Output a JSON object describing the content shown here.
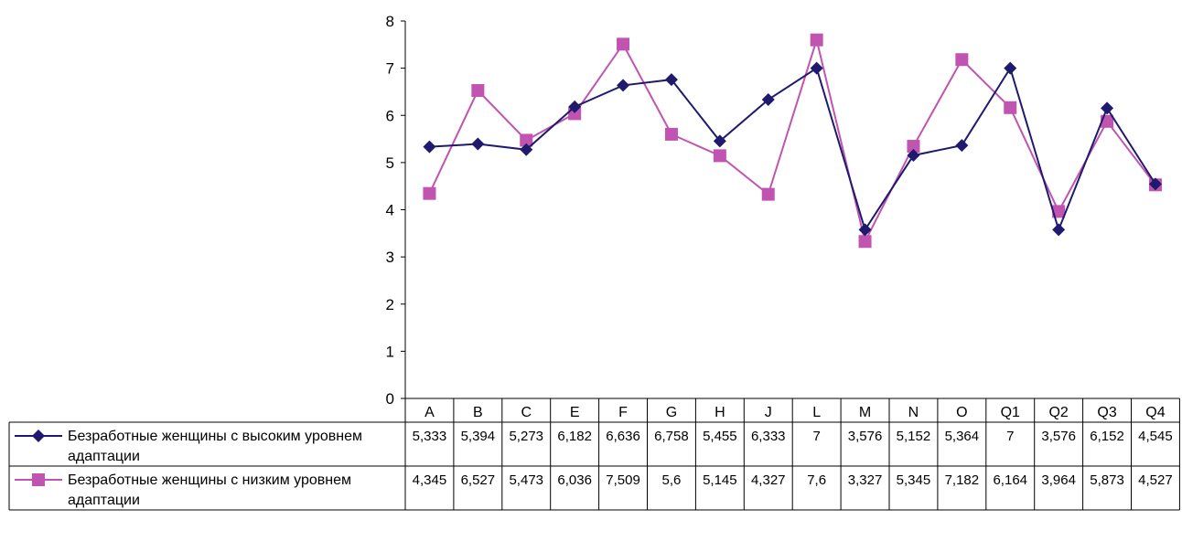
{
  "chart_data": {
    "type": "line",
    "categories": [
      "A",
      "B",
      "C",
      "E",
      "F",
      "G",
      "H",
      "J",
      "L",
      "M",
      "N",
      "O",
      "Q1",
      "Q2",
      "Q3",
      "Q4"
    ],
    "ylim": [
      0,
      8
    ],
    "yticks": [
      0,
      1,
      2,
      3,
      4,
      5,
      6,
      7,
      8
    ],
    "grid": false,
    "legend": "data-table",
    "series": [
      {
        "name_lines": [
          "Безработные женщины с высоким уровнем",
          "адаптации"
        ],
        "marker": "diamond",
        "color": "#1f1a6e",
        "values": [
          5.333,
          5.394,
          5.273,
          6.182,
          6.636,
          6.758,
          5.455,
          6.333,
          7,
          3.576,
          5.152,
          5.364,
          7,
          3.576,
          6.152,
          4.545
        ],
        "labels": [
          "5,333",
          "5,394",
          "5,273",
          "6,182",
          "6,636",
          "6,758",
          "5,455",
          "6,333",
          "7",
          "3,576",
          "5,152",
          "5,364",
          "7",
          "3,576",
          "6,152",
          "4,545"
        ]
      },
      {
        "name_lines": [
          "Безработные женщины с низким уровнем",
          "адаптации"
        ],
        "marker": "square",
        "color": "#c154b0",
        "values": [
          4.345,
          6.527,
          5.473,
          6.036,
          7.509,
          5.6,
          5.145,
          4.327,
          7.6,
          3.327,
          5.345,
          7.182,
          6.164,
          3.964,
          5.873,
          4.527
        ],
        "labels": [
          "4,345",
          "6,527",
          "5,473",
          "6,036",
          "7,509",
          "5,6",
          "5,145",
          "4,327",
          "7,6",
          "3,327",
          "5,345",
          "7,182",
          "6,164",
          "3,964",
          "5,873",
          "4,527"
        ]
      }
    ]
  }
}
